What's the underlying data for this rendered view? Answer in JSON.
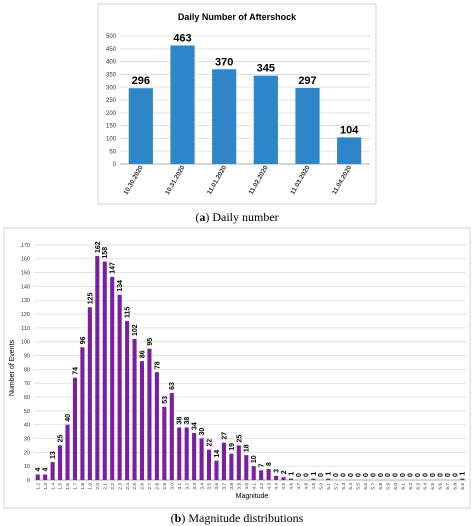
{
  "captions": {
    "a_prefix": "(",
    "a_letter": "a",
    "a_suffix": ") Daily number",
    "b_prefix": "(",
    "b_letter": "b",
    "b_suffix": ") Magnitude distributions"
  },
  "chart_data": [
    {
      "type": "bar",
      "title": "Daily Number of Aftershock",
      "xlabel": "",
      "ylabel": "",
      "ylim": [
        0,
        500
      ],
      "yticks": [
        0,
        50,
        100,
        150,
        200,
        250,
        300,
        350,
        400,
        450,
        500
      ],
      "grid": true,
      "bar_color": "#2e86c8",
      "categories": [
        "10.30.2020",
        "10.31.2020",
        "11.01.2020",
        "11.02.2020",
        "11.03.2020",
        "11.04.2020"
      ],
      "values": [
        296,
        463,
        370,
        345,
        297,
        104
      ],
      "data_labels": [
        "296",
        "463",
        "370",
        "345",
        "297",
        "104"
      ]
    },
    {
      "type": "bar",
      "title": "",
      "xlabel": "Magnitude",
      "ylabel": "Number of Events",
      "ylim": [
        0,
        170
      ],
      "yticks": [
        0,
        10,
        20,
        30,
        40,
        50,
        60,
        70,
        80,
        90,
        100,
        110,
        120,
        130,
        140,
        150,
        160,
        170
      ],
      "grid": true,
      "bar_color": "#7a1fa2",
      "categories": [
        "1.2",
        "1.3",
        "1.4",
        "1.5",
        "1.6",
        "1.7",
        "1.8",
        "1.9",
        "2.0",
        "2.1",
        "2.2",
        "2.3",
        "2.4",
        "2.5",
        "2.6",
        "2.7",
        "2.8",
        "2.9",
        "3.0",
        "3.1",
        "3.2",
        "3.3",
        "3.4",
        "3.5",
        "3.6",
        "3.7",
        "3.8",
        "3.9",
        "4.0",
        "4.1",
        "4.2",
        "4.3",
        "4.4",
        "4.5",
        "4.6",
        "4.7",
        "4.8",
        "4.9",
        "5.0",
        "5.1",
        "5.2",
        "5.3",
        "5.4",
        "5.5",
        "5.6",
        "5.7",
        "5.8",
        "5.9",
        "6.0",
        "6.1",
        "6.2",
        "6.3",
        "6.4",
        "6.5",
        "6.6",
        "6.7",
        "6.8",
        "6.9"
      ],
      "values": [
        4,
        4,
        13,
        25,
        40,
        74,
        96,
        125,
        162,
        158,
        147,
        134,
        115,
        102,
        86,
        95,
        78,
        53,
        63,
        38,
        38,
        34,
        30,
        22,
        14,
        27,
        19,
        25,
        18,
        10,
        7,
        8,
        3,
        2,
        1,
        0,
        0,
        1,
        0,
        1,
        0,
        0,
        0,
        0,
        0,
        0,
        0,
        0,
        0,
        0,
        0,
        0,
        0,
        0,
        0,
        0,
        0,
        1
      ],
      "data_labels": [
        "4",
        "4",
        "13",
        "25",
        "40",
        "74",
        "96",
        "125",
        "162",
        "158",
        "147",
        "134",
        "115",
        "102",
        "86",
        "95",
        "78",
        "53",
        "63",
        "38",
        "38",
        "34",
        "30",
        "22",
        "14",
        "27",
        "19",
        "25",
        "18",
        "10",
        "7",
        "8",
        "3",
        "2",
        "1",
        "0",
        "0",
        "1",
        "0",
        "1",
        "0",
        "0",
        "0",
        "0",
        "0",
        "0",
        "0",
        "0",
        "0",
        "0",
        "0",
        "0",
        "0",
        "0",
        "0",
        "0",
        "0",
        "1"
      ]
    }
  ]
}
